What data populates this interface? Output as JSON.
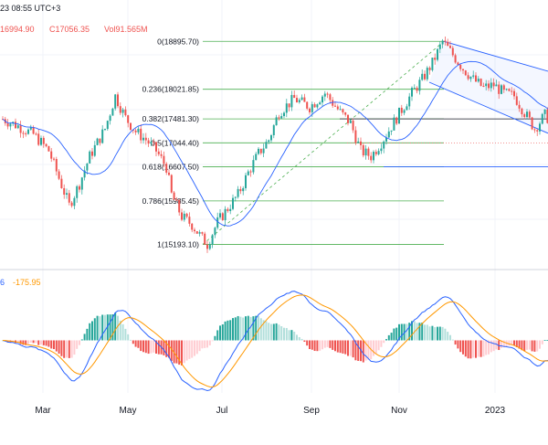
{
  "header": {
    "time": "23 08:55 UTC+3",
    "low": "16994.90",
    "close": "C17056.35",
    "volume": "Vol91.565M"
  },
  "indicator_header": {
    "value1": "6",
    "value2": "-175.95"
  },
  "colors": {
    "up": "#26a69a",
    "down": "#ef5350",
    "ma": "#2962ff",
    "fib": "#4caf50",
    "macd": "#2962ff",
    "signal": "#ff9800",
    "channel": "#2962ff",
    "sep": "#d1d4dc"
  },
  "chart_data": {
    "type": "candlestick",
    "x_ticks": [
      "Mar",
      "May",
      "Jul",
      "Sep",
      "Nov",
      "2023"
    ],
    "fib_levels": [
      {
        "ratio": "0",
        "label": "0(18895.70)",
        "value": 18895.7
      },
      {
        "ratio": "0.236",
        "label": "0.236(18021.85)",
        "value": 18021.85
      },
      {
        "ratio": "0.382",
        "label": "0.382(17481.30)",
        "value": 17481.3
      },
      {
        "ratio": "0.5",
        "label": "0.5(17044.40)",
        "value": 17044.4
      },
      {
        "ratio": "0.618",
        "label": "0.618(16607.50)",
        "value": 16607.5
      },
      {
        "ratio": "0.786",
        "label": "0.786(15985.45)",
        "value": 15985.45
      },
      {
        "ratio": "1",
        "label": "1(15193.10)",
        "value": 15193.1
      }
    ],
    "price_path": [
      [
        0,
        17480
      ],
      [
        6,
        17350
      ],
      [
        12,
        17200
      ],
      [
        18,
        16900
      ],
      [
        22,
        16400
      ],
      [
        26,
        15900
      ],
      [
        30,
        16300
      ],
      [
        34,
        16800
      ],
      [
        40,
        17300
      ],
      [
        44,
        17900
      ],
      [
        48,
        17500
      ],
      [
        52,
        17250
      ],
      [
        56,
        17100
      ],
      [
        60,
        16900
      ],
      [
        64,
        16600
      ],
      [
        66,
        16100
      ],
      [
        70,
        15700
      ],
      [
        74,
        15550
      ],
      [
        78,
        15300
      ],
      [
        80,
        15193
      ],
      [
        84,
        15600
      ],
      [
        88,
        15850
      ],
      [
        92,
        16100
      ],
      [
        96,
        16500
      ],
      [
        100,
        16850
      ],
      [
        104,
        17100
      ],
      [
        108,
        17600
      ],
      [
        114,
        17850
      ],
      [
        120,
        17700
      ],
      [
        126,
        17950
      ],
      [
        132,
        17600
      ],
      [
        136,
        17400
      ],
      [
        140,
        16900
      ],
      [
        144,
        16800
      ],
      [
        148,
        17050
      ],
      [
        152,
        17350
      ],
      [
        156,
        17650
      ],
      [
        160,
        17950
      ],
      [
        164,
        18200
      ],
      [
        168,
        18500
      ],
      [
        172,
        18895
      ],
      [
        176,
        18650
      ],
      [
        180,
        18400
      ],
      [
        184,
        18200
      ],
      [
        188,
        18050
      ],
      [
        192,
        18100
      ],
      [
        196,
        17950
      ],
      [
        200,
        17900
      ],
      [
        204,
        17600
      ],
      [
        208,
        17300
      ],
      [
        212,
        17550
      ],
      [
        215,
        17400
      ]
    ],
    "price_range": [
      14900,
      19150
    ],
    "indicator_range": [
      -1,
      1
    ]
  }
}
